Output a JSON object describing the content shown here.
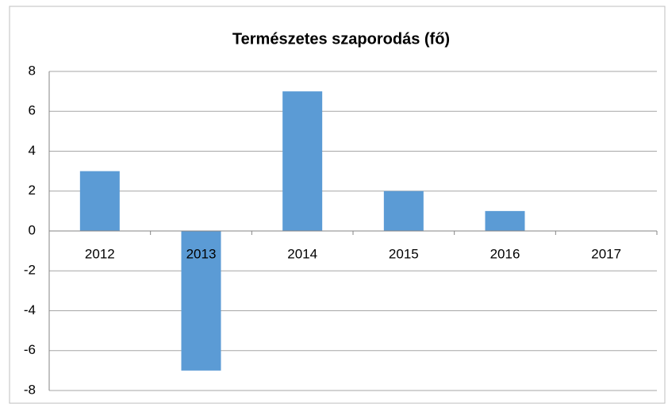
{
  "chart_data": {
    "type": "bar",
    "title": "Természetes szaporodás (fő)",
    "categories": [
      "2012",
      "2013",
      "2014",
      "2015",
      "2016",
      "2017"
    ],
    "values": [
      3,
      -7,
      7,
      2,
      1,
      0
    ],
    "color": "#5b9bd5",
    "ylim": [
      -8,
      8
    ],
    "yticks": [
      -8,
      -6,
      -4,
      -2,
      0,
      2,
      4,
      6,
      8
    ],
    "grid": true
  }
}
